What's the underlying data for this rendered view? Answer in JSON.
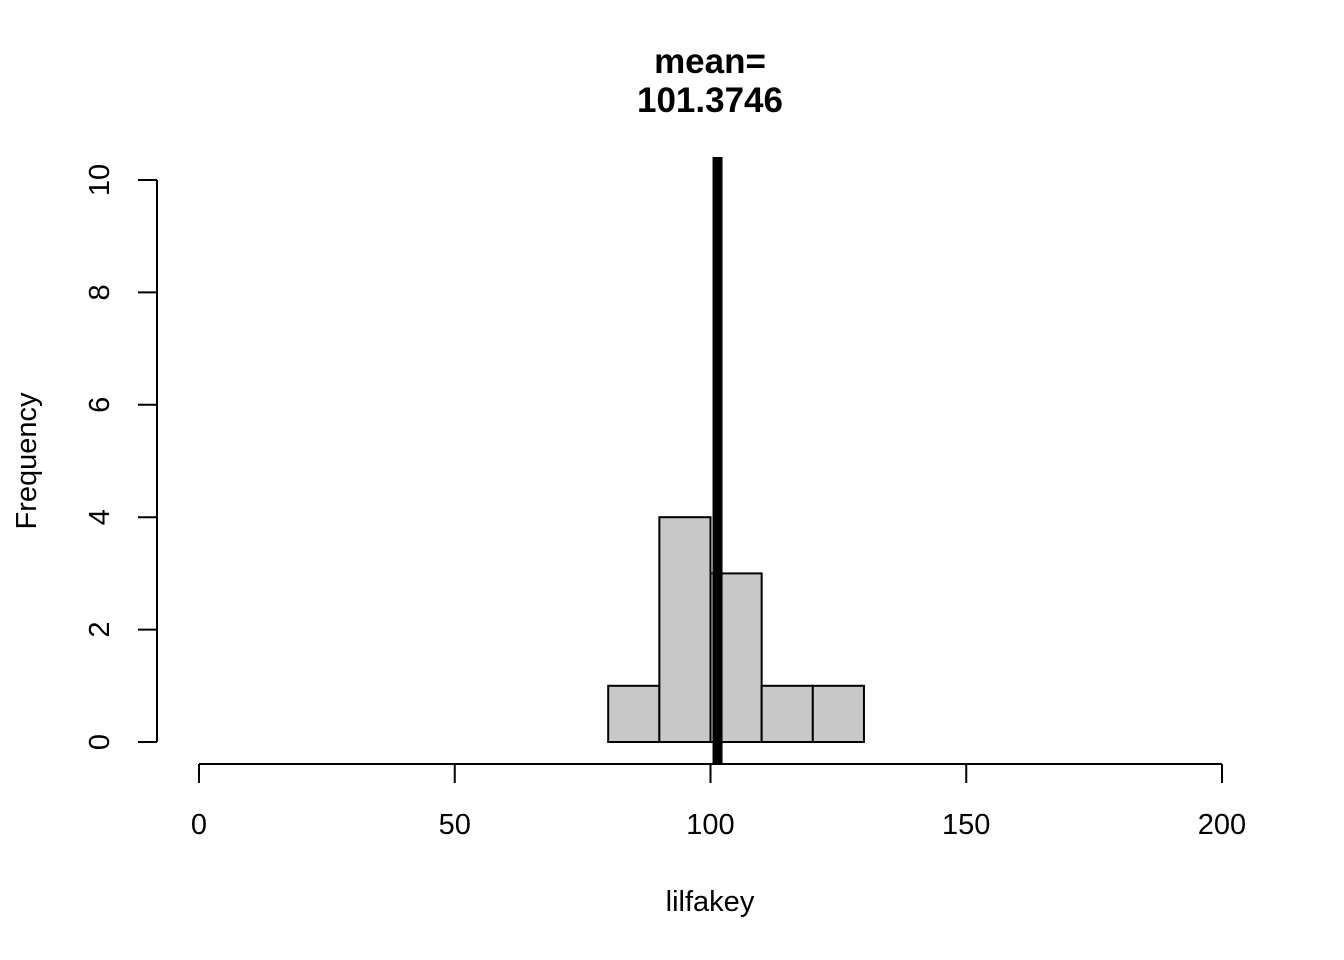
{
  "chart_data": {
    "type": "bar",
    "title_lines": [
      "mean=",
      "101.3746"
    ],
    "xlabel": "lilfakey",
    "ylabel": "Frequency",
    "xlim": [
      0,
      200
    ],
    "ylim": [
      0,
      10
    ],
    "x_ticks": [
      0,
      50,
      100,
      150,
      200
    ],
    "x_tick_labels": [
      "0",
      "50",
      "100",
      "150",
      "200"
    ],
    "y_ticks": [
      0,
      2,
      4,
      6,
      8,
      10
    ],
    "y_tick_labels": [
      "0",
      "2",
      "4",
      "6",
      "8",
      "10"
    ],
    "bins": [
      {
        "start": 80,
        "end": 90,
        "count": 1
      },
      {
        "start": 90,
        "end": 100,
        "count": 4
      },
      {
        "start": 100,
        "end": 110,
        "count": 3
      },
      {
        "start": 110,
        "end": 120,
        "count": 1
      },
      {
        "start": 120,
        "end": 130,
        "count": 1
      }
    ],
    "mean_line": 101.3746,
    "bar_color": "#c8c8c8",
    "line_color": "#000000",
    "grid": false,
    "legend": "none"
  }
}
